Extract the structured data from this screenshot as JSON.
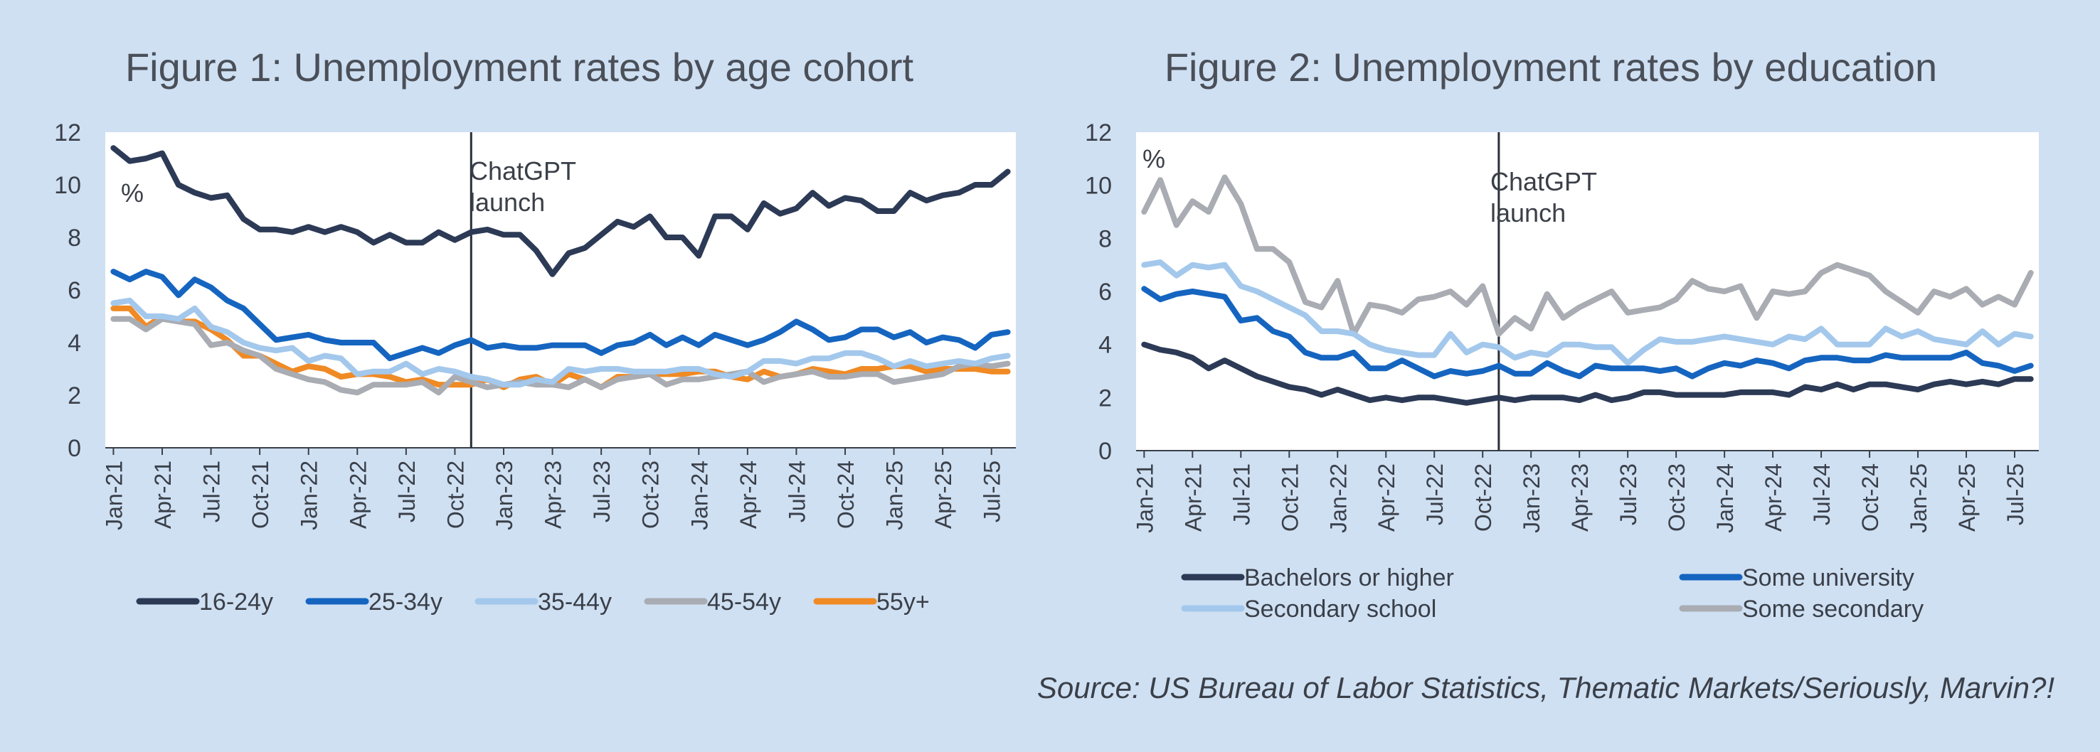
{
  "source": "Source: US Bureau of Labor Statistics, Thematic Markets/Seriously, Marvin?!",
  "chart_data": [
    {
      "type": "line",
      "title": "Figure 1: Unemployment rates by age cohort",
      "ylabel": "%",
      "ylim": [
        0,
        12
      ],
      "yticks": [
        "0",
        "2",
        "4",
        "6",
        "8",
        "10",
        "12"
      ],
      "xticks": [
        "Jan-21",
        "Apr-21",
        "Jul-21",
        "Oct-21",
        "Jan-22",
        "Apr-22",
        "Jul-22",
        "Oct-22",
        "Jan-23",
        "Apr-23",
        "Jul-23",
        "Oct-23",
        "Jan-24",
        "Apr-24",
        "Jul-24",
        "Oct-24",
        "Jan-25",
        "Apr-25",
        "Jul-25"
      ],
      "x": [
        "Jan-21",
        "Feb-21",
        "Mar-21",
        "Apr-21",
        "May-21",
        "Jun-21",
        "Jul-21",
        "Aug-21",
        "Sep-21",
        "Oct-21",
        "Nov-21",
        "Dec-21",
        "Jan-22",
        "Feb-22",
        "Mar-22",
        "Apr-22",
        "May-22",
        "Jun-22",
        "Jul-22",
        "Aug-22",
        "Sep-22",
        "Oct-22",
        "Nov-22",
        "Dec-22",
        "Jan-23",
        "Feb-23",
        "Mar-23",
        "Apr-23",
        "May-23",
        "Jun-23",
        "Jul-23",
        "Aug-23",
        "Sep-23",
        "Oct-23",
        "Nov-23",
        "Dec-23",
        "Jan-24",
        "Feb-24",
        "Mar-24",
        "Apr-24",
        "May-24",
        "Jun-24",
        "Jul-24",
        "Aug-24",
        "Sep-24",
        "Oct-24",
        "Nov-24",
        "Dec-24",
        "Jan-25",
        "Feb-25",
        "Mar-25",
        "Apr-25",
        "May-25",
        "Jun-25",
        "Jul-25",
        "Aug-25"
      ],
      "annotation": {
        "text": [
          "ChatGPT",
          "launch"
        ],
        "x": "Nov-22"
      },
      "legend_position": "bottom",
      "series": [
        {
          "name": "16-24y",
          "color": "#2c3a56",
          "values": [
            11.4,
            10.9,
            11.0,
            11.2,
            10.0,
            9.7,
            9.5,
            9.6,
            8.7,
            8.3,
            8.3,
            8.2,
            8.4,
            8.2,
            8.4,
            8.2,
            7.8,
            8.1,
            7.8,
            7.8,
            8.2,
            7.9,
            8.2,
            8.3,
            8.1,
            8.1,
            7.5,
            6.6,
            7.4,
            7.6,
            8.1,
            8.6,
            8.4,
            8.8,
            8.0,
            8.0,
            7.3,
            8.8,
            8.8,
            8.3,
            9.3,
            8.9,
            9.1,
            9.7,
            9.2,
            9.5,
            9.4,
            9.0,
            9.0,
            9.7,
            9.4,
            9.6,
            9.7,
            10.0,
            10.0,
            10.5
          ]
        },
        {
          "name": "25-34y",
          "color": "#1565c0",
          "values": [
            6.7,
            6.4,
            6.7,
            6.5,
            5.8,
            6.4,
            6.1,
            5.6,
            5.3,
            4.7,
            4.1,
            4.2,
            4.3,
            4.1,
            4.0,
            4.0,
            4.0,
            3.4,
            3.6,
            3.8,
            3.6,
            3.9,
            4.1,
            3.8,
            3.9,
            3.8,
            3.8,
            3.9,
            3.9,
            3.9,
            3.6,
            3.9,
            4.0,
            4.3,
            3.9,
            4.2,
            3.9,
            4.3,
            4.1,
            3.9,
            4.1,
            4.4,
            4.8,
            4.5,
            4.1,
            4.2,
            4.5,
            4.5,
            4.2,
            4.4,
            4.0,
            4.2,
            4.1,
            3.8,
            4.3,
            4.4
          ]
        },
        {
          "name": "35-44y",
          "color": "#a3c8ec",
          "values": [
            5.5,
            5.6,
            5.0,
            5.0,
            4.9,
            5.3,
            4.6,
            4.4,
            4.0,
            3.8,
            3.7,
            3.8,
            3.3,
            3.5,
            3.4,
            2.8,
            2.9,
            2.9,
            3.2,
            2.8,
            3.0,
            2.9,
            2.7,
            2.6,
            2.4,
            2.4,
            2.6,
            2.5,
            3.0,
            2.9,
            3.0,
            3.0,
            2.9,
            2.9,
            2.9,
            3.0,
            3.0,
            2.8,
            2.7,
            2.9,
            3.3,
            3.3,
            3.2,
            3.4,
            3.4,
            3.6,
            3.6,
            3.4,
            3.1,
            3.3,
            3.1,
            3.2,
            3.3,
            3.2,
            3.4,
            3.5
          ]
        },
        {
          "name": "45-54y",
          "color": "#a9acb2",
          "values": [
            4.9,
            4.9,
            4.5,
            4.9,
            4.8,
            4.7,
            3.9,
            4.0,
            3.7,
            3.5,
            3.0,
            2.8,
            2.6,
            2.5,
            2.2,
            2.1,
            2.4,
            2.4,
            2.4,
            2.5,
            2.1,
            2.7,
            2.5,
            2.3,
            2.4,
            2.5,
            2.4,
            2.4,
            2.3,
            2.6,
            2.3,
            2.6,
            2.7,
            2.8,
            2.4,
            2.6,
            2.6,
            2.7,
            2.8,
            2.9,
            2.5,
            2.7,
            2.8,
            2.9,
            2.7,
            2.7,
            2.8,
            2.8,
            2.5,
            2.6,
            2.7,
            2.8,
            3.1,
            3.2,
            3.1,
            3.2
          ]
        },
        {
          "name": "55y+",
          "color": "#f08a24",
          "values": [
            5.3,
            5.3,
            4.6,
            5.0,
            4.8,
            4.8,
            4.5,
            4.1,
            3.5,
            3.5,
            3.2,
            2.9,
            3.1,
            3.0,
            2.7,
            2.8,
            2.8,
            2.7,
            2.5,
            2.6,
            2.4,
            2.4,
            2.4,
            2.6,
            2.3,
            2.6,
            2.7,
            2.4,
            2.8,
            2.6,
            2.3,
            2.7,
            2.7,
            2.8,
            2.8,
            2.8,
            2.9,
            2.9,
            2.7,
            2.6,
            2.9,
            2.7,
            2.8,
            3.0,
            2.9,
            2.8,
            3.0,
            3.0,
            3.1,
            3.1,
            2.9,
            3.0,
            3.0,
            3.0,
            2.9,
            2.9
          ]
        }
      ]
    },
    {
      "type": "line",
      "title": "Figure 2: Unemployment rates by education",
      "ylabel": "%",
      "ylim": [
        0,
        12
      ],
      "yticks": [
        "0",
        "2",
        "4",
        "6",
        "8",
        "10",
        "12"
      ],
      "xticks": [
        "Jan-21",
        "Apr-21",
        "Jul-21",
        "Oct-21",
        "Jan-22",
        "Apr-22",
        "Jul-22",
        "Oct-22",
        "Jan-23",
        "Apr-23",
        "Jul-23",
        "Oct-23",
        "Jan-24",
        "Apr-24",
        "Jul-24",
        "Oct-24",
        "Jan-25",
        "Apr-25",
        "Jul-25"
      ],
      "x": [
        "Jan-21",
        "Feb-21",
        "Mar-21",
        "Apr-21",
        "May-21",
        "Jun-21",
        "Jul-21",
        "Aug-21",
        "Sep-21",
        "Oct-21",
        "Nov-21",
        "Dec-21",
        "Jan-22",
        "Feb-22",
        "Mar-22",
        "Apr-22",
        "May-22",
        "Jun-22",
        "Jul-22",
        "Aug-22",
        "Sep-22",
        "Oct-22",
        "Nov-22",
        "Dec-22",
        "Jan-23",
        "Feb-23",
        "Mar-23",
        "Apr-23",
        "May-23",
        "Jun-23",
        "Jul-23",
        "Aug-23",
        "Sep-23",
        "Oct-23",
        "Nov-23",
        "Dec-23",
        "Jan-24",
        "Feb-24",
        "Mar-24",
        "Apr-24",
        "May-24",
        "Jun-24",
        "Jul-24",
        "Aug-24",
        "Sep-24",
        "Oct-24",
        "Nov-24",
        "Dec-24",
        "Jan-25",
        "Feb-25",
        "Mar-25",
        "Apr-25",
        "May-25",
        "Jun-25",
        "Jul-25",
        "Aug-25"
      ],
      "annotation": {
        "text": [
          "ChatGPT",
          "launch"
        ],
        "x": "Nov-22"
      },
      "legend_position": "bottom",
      "series": [
        {
          "name": "Bachelors or higher",
          "color": "#2c3a56",
          "values": [
            4.0,
            3.8,
            3.7,
            3.5,
            3.1,
            3.4,
            3.1,
            2.8,
            2.6,
            2.4,
            2.3,
            2.1,
            2.3,
            2.1,
            1.9,
            2.0,
            1.9,
            2.0,
            2.0,
            1.9,
            1.8,
            1.9,
            2.0,
            1.9,
            2.0,
            2.0,
            2.0,
            1.9,
            2.1,
            1.9,
            2.0,
            2.2,
            2.2,
            2.1,
            2.1,
            2.1,
            2.1,
            2.2,
            2.2,
            2.2,
            2.1,
            2.4,
            2.3,
            2.5,
            2.3,
            2.5,
            2.5,
            2.4,
            2.3,
            2.5,
            2.6,
            2.5,
            2.6,
            2.5,
            2.7,
            2.7
          ]
        },
        {
          "name": "Some university",
          "color": "#1565c0",
          "values": [
            6.1,
            5.7,
            5.9,
            6.0,
            5.9,
            5.8,
            4.9,
            5.0,
            4.5,
            4.3,
            3.7,
            3.5,
            3.5,
            3.7,
            3.1,
            3.1,
            3.4,
            3.1,
            2.8,
            3.0,
            2.9,
            3.0,
            3.2,
            2.9,
            2.9,
            3.3,
            3.0,
            2.8,
            3.2,
            3.1,
            3.1,
            3.1,
            3.0,
            3.1,
            2.8,
            3.1,
            3.3,
            3.2,
            3.4,
            3.3,
            3.1,
            3.4,
            3.5,
            3.5,
            3.4,
            3.4,
            3.6,
            3.5,
            3.5,
            3.5,
            3.5,
            3.7,
            3.3,
            3.2,
            3.0,
            3.2
          ]
        },
        {
          "name": "Secondary school",
          "color": "#a3c8ec",
          "values": [
            7.0,
            7.1,
            6.6,
            7.0,
            6.9,
            7.0,
            6.2,
            6.0,
            5.7,
            5.4,
            5.1,
            4.5,
            4.5,
            4.4,
            4.0,
            3.8,
            3.7,
            3.6,
            3.6,
            4.4,
            3.7,
            4.0,
            3.9,
            3.5,
            3.7,
            3.6,
            4.0,
            4.0,
            3.9,
            3.9,
            3.3,
            3.8,
            4.2,
            4.1,
            4.1,
            4.2,
            4.3,
            4.2,
            4.1,
            4.0,
            4.3,
            4.2,
            4.6,
            4.0,
            4.0,
            4.0,
            4.6,
            4.3,
            4.5,
            4.2,
            4.1,
            4.0,
            4.5,
            4.0,
            4.4,
            4.3
          ]
        },
        {
          "name": "Some secondary",
          "color": "#a9acb2",
          "values": [
            9.0,
            10.2,
            8.5,
            9.4,
            9.0,
            10.3,
            9.3,
            7.6,
            7.6,
            7.1,
            5.6,
            5.4,
            6.4,
            4.4,
            5.5,
            5.4,
            5.2,
            5.7,
            5.8,
            6.0,
            5.5,
            6.2,
            4.4,
            5.0,
            4.6,
            5.9,
            5.0,
            5.4,
            5.7,
            6.0,
            5.2,
            5.3,
            5.4,
            5.7,
            6.4,
            6.1,
            6.0,
            6.2,
            5.0,
            6.0,
            5.9,
            6.0,
            6.7,
            7.0,
            6.8,
            6.6,
            6.0,
            5.6,
            5.2,
            6.0,
            5.8,
            6.1,
            5.5,
            5.8,
            5.5,
            6.7
          ]
        }
      ]
    }
  ]
}
